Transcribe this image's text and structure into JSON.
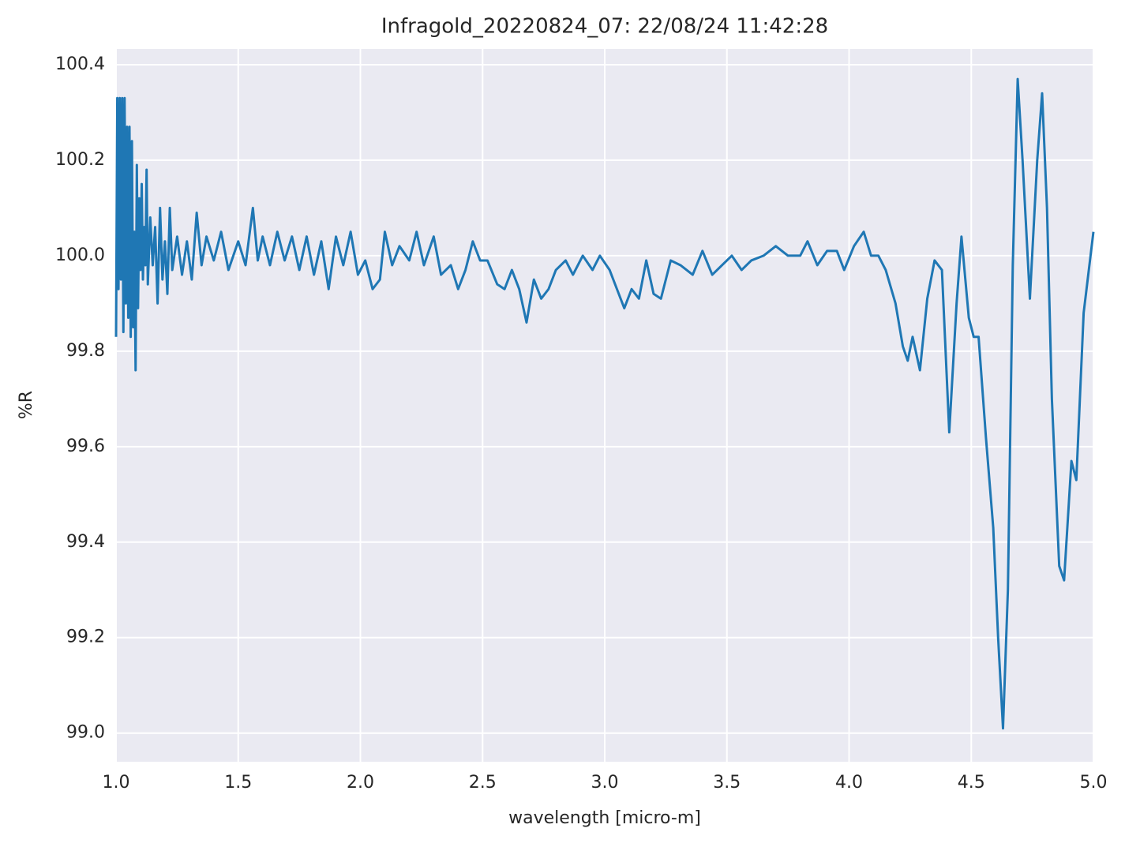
{
  "chart_data": {
    "type": "line",
    "title": "Infragold_20220824_07:  22/08/24 11:42:28",
    "x_label": "wavelength [micro-m]",
    "y_label": "%R",
    "xlim": [
      1.0,
      5.0
    ],
    "ylim": [
      98.94,
      100.433
    ],
    "xticks": [
      {
        "value": 1.0,
        "label": "1.0"
      },
      1.5,
      {
        "value": 2.0,
        "label": "2.0"
      },
      2.5,
      {
        "value": 3.0,
        "label": "3.0"
      },
      3.5,
      {
        "value": 4.0,
        "label": "4.0"
      },
      4.5,
      {
        "value": 5.0,
        "label": "5.0"
      }
    ],
    "yticks": [
      {
        "value": 99.0,
        "label": "99.0"
      },
      99.2,
      99.4,
      99.6,
      99.8,
      {
        "value": 100.0,
        "label": "100.0"
      },
      100.2,
      100.4
    ],
    "grid": true,
    "x": [
      1.0,
      1.005,
      1.01,
      1.015,
      1.02,
      1.025,
      1.03,
      1.035,
      1.04,
      1.045,
      1.05,
      1.055,
      1.06,
      1.065,
      1.07,
      1.075,
      1.08,
      1.085,
      1.09,
      1.095,
      1.1,
      1.105,
      1.11,
      1.115,
      1.12,
      1.125,
      1.13,
      1.14,
      1.15,
      1.16,
      1.17,
      1.18,
      1.19,
      1.2,
      1.21,
      1.22,
      1.23,
      1.25,
      1.27,
      1.29,
      1.31,
      1.33,
      1.35,
      1.37,
      1.4,
      1.43,
      1.46,
      1.5,
      1.53,
      1.56,
      1.58,
      1.6,
      1.63,
      1.66,
      1.69,
      1.72,
      1.75,
      1.78,
      1.81,
      1.84,
      1.87,
      1.9,
      1.93,
      1.96,
      1.99,
      2.02,
      2.05,
      2.08,
      2.1,
      2.13,
      2.16,
      2.2,
      2.23,
      2.26,
      2.3,
      2.33,
      2.37,
      2.4,
      2.43,
      2.46,
      2.49,
      2.52,
      2.56,
      2.59,
      2.62,
      2.65,
      2.68,
      2.71,
      2.74,
      2.77,
      2.8,
      2.84,
      2.87,
      2.91,
      2.95,
      2.98,
      3.02,
      3.05,
      3.08,
      3.11,
      3.14,
      3.17,
      3.2,
      3.23,
      3.27,
      3.31,
      3.36,
      3.4,
      3.44,
      3.48,
      3.52,
      3.56,
      3.6,
      3.65,
      3.7,
      3.75,
      3.8,
      3.83,
      3.87,
      3.91,
      3.95,
      3.98,
      4.02,
      4.06,
      4.09,
      4.12,
      4.15,
      4.19,
      4.22,
      4.24,
      4.26,
      4.29,
      4.32,
      4.35,
      4.38,
      4.41,
      4.44,
      4.46,
      4.49,
      4.51,
      4.53,
      4.56,
      4.59,
      4.61,
      4.63,
      4.65,
      4.67,
      4.69,
      4.71,
      4.74,
      4.77,
      4.79,
      4.81,
      4.83,
      4.86,
      4.88,
      4.91,
      4.93,
      4.96,
      5.0
    ],
    "series": [
      {
        "name": "%R",
        "color": "#1f77b4",
        "values": [
          99.83,
          100.33,
          99.93,
          100.33,
          99.95,
          100.33,
          99.84,
          100.33,
          99.9,
          100.27,
          99.87,
          100.27,
          99.83,
          100.24,
          99.85,
          100.05,
          99.76,
          100.19,
          99.89,
          100.12,
          99.97,
          100.15,
          99.95,
          100.06,
          99.98,
          100.18,
          99.94,
          100.08,
          99.98,
          100.06,
          99.9,
          100.1,
          99.95,
          100.03,
          99.92,
          100.1,
          99.97,
          100.04,
          99.96,
          100.03,
          99.95,
          100.09,
          99.98,
          100.04,
          99.99,
          100.05,
          99.97,
          100.03,
          99.98,
          100.1,
          99.99,
          100.04,
          99.98,
          100.05,
          99.99,
          100.04,
          99.97,
          100.04,
          99.96,
          100.03,
          99.93,
          100.04,
          99.98,
          100.05,
          99.96,
          99.99,
          99.93,
          99.95,
          100.05,
          99.98,
          100.02,
          99.99,
          100.05,
          99.98,
          100.04,
          99.96,
          99.98,
          99.93,
          99.97,
          100.03,
          99.99,
          99.99,
          99.94,
          99.93,
          99.97,
          99.93,
          99.86,
          99.95,
          99.91,
          99.93,
          99.97,
          99.99,
          99.96,
          100.0,
          99.97,
          100.0,
          99.97,
          99.93,
          99.89,
          99.93,
          99.91,
          99.99,
          99.92,
          99.91,
          99.99,
          99.98,
          99.96,
          100.01,
          99.96,
          99.98,
          100.0,
          99.97,
          99.99,
          100.0,
          100.02,
          100.0,
          100.0,
          100.03,
          99.98,
          100.01,
          100.01,
          99.97,
          100.02,
          100.05,
          100.0,
          100.0,
          99.97,
          99.9,
          99.81,
          99.78,
          99.83,
          99.76,
          99.91,
          99.99,
          99.97,
          99.63,
          99.9,
          100.04,
          99.87,
          99.83,
          99.83,
          99.62,
          99.43,
          99.2,
          99.01,
          99.3,
          99.98,
          100.37,
          100.2,
          99.91,
          100.2,
          100.34,
          100.1,
          99.7,
          99.35,
          99.32,
          99.57,
          99.53,
          99.88,
          100.05
        ]
      }
    ]
  }
}
